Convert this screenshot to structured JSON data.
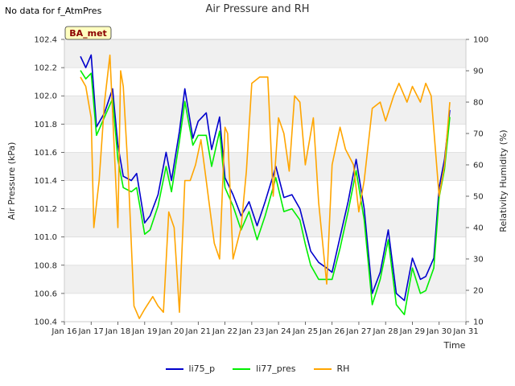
{
  "header": {
    "note": "No data for f_AtmPres",
    "title": "Air Pressure and RH"
  },
  "chart_data": {
    "type": "line",
    "title": "Air Pressure and RH",
    "xlabel": "Time",
    "ylabel_left": "Air Pressure (kPa)",
    "ylabel_right": "Relativity Humidity (%)",
    "badge": "BA_met",
    "x_ticks": [
      "Jan 16",
      "Jan 17",
      "Jan 18",
      "Jan 19",
      "Jan 20",
      "Jan 21",
      "Jan 22",
      "Jan 23",
      "Jan 24",
      "Jan 25",
      "Jan 26",
      "Jan 27",
      "Jan 28",
      "Jan 29",
      "Jan 30",
      "Jan 31"
    ],
    "xlim": [
      16,
      31
    ],
    "ylim_left": [
      100.4,
      102.4
    ],
    "ylim_right": [
      10,
      100
    ],
    "y_ticks_left": [
      "100.4",
      "100.6",
      "100.8",
      "101.0",
      "101.2",
      "101.4",
      "101.6",
      "101.8",
      "102.0",
      "102.2",
      "102.4"
    ],
    "y_ticks_right": [
      "10",
      "20",
      "30",
      "40",
      "50",
      "60",
      "70",
      "80",
      "90",
      "100"
    ],
    "legend_position": "bottom-center",
    "series": [
      {
        "name": "li75_p",
        "color": "#0000cc",
        "axis": "left",
        "x": [
          16.6,
          16.8,
          17.0,
          17.2,
          17.5,
          17.8,
          18.0,
          18.2,
          18.5,
          18.7,
          19.0,
          19.2,
          19.5,
          19.8,
          20.0,
          20.3,
          20.5,
          20.8,
          21.0,
          21.3,
          21.5,
          21.8,
          22.0,
          22.3,
          22.6,
          22.9,
          23.2,
          23.5,
          23.9,
          24.2,
          24.5,
          24.8,
          25.0,
          25.2,
          25.5,
          25.8,
          26.0,
          26.3,
          26.6,
          26.9,
          27.2,
          27.5,
          27.8,
          28.1,
          28.4,
          28.7,
          29.0,
          29.3,
          29.5,
          29.8,
          30.0,
          30.2,
          30.4
        ],
        "y": [
          102.28,
          102.2,
          102.29,
          101.78,
          101.88,
          102.05,
          101.65,
          101.43,
          101.4,
          101.45,
          101.1,
          101.15,
          101.3,
          101.6,
          101.4,
          101.75,
          102.05,
          101.7,
          101.82,
          101.88,
          101.62,
          101.85,
          101.42,
          101.3,
          101.15,
          101.25,
          101.08,
          101.25,
          101.5,
          101.28,
          101.3,
          101.2,
          101.05,
          100.9,
          100.82,
          100.78,
          100.75,
          101.0,
          101.25,
          101.55,
          101.2,
          100.6,
          100.75,
          101.05,
          100.6,
          100.55,
          100.85,
          100.7,
          100.72,
          100.85,
          101.35,
          101.55,
          101.9
        ]
      },
      {
        "name": "li77_pres",
        "color": "#00ee00",
        "axis": "left",
        "x": [
          16.6,
          16.8,
          17.0,
          17.2,
          17.5,
          17.8,
          18.0,
          18.2,
          18.5,
          18.7,
          19.0,
          19.2,
          19.5,
          19.8,
          20.0,
          20.3,
          20.5,
          20.8,
          21.0,
          21.3,
          21.5,
          21.8,
          22.0,
          22.3,
          22.6,
          22.9,
          23.2,
          23.5,
          23.9,
          24.2,
          24.5,
          24.8,
          25.0,
          25.2,
          25.5,
          25.8,
          26.0,
          26.3,
          26.6,
          26.9,
          27.2,
          27.5,
          27.8,
          28.1,
          28.4,
          28.7,
          29.0,
          29.3,
          29.5,
          29.8,
          30.0,
          30.2,
          30.4
        ],
        "y": [
          102.18,
          102.12,
          102.16,
          101.72,
          101.85,
          101.98,
          101.55,
          101.35,
          101.32,
          101.35,
          101.02,
          101.05,
          101.22,
          101.5,
          101.32,
          101.68,
          101.96,
          101.65,
          101.72,
          101.72,
          101.5,
          101.75,
          101.35,
          101.22,
          101.05,
          101.18,
          100.98,
          101.15,
          101.42,
          101.18,
          101.2,
          101.12,
          100.95,
          100.8,
          100.7,
          100.7,
          100.7,
          100.92,
          101.18,
          101.47,
          101.12,
          100.52,
          100.7,
          100.98,
          100.52,
          100.45,
          100.78,
          100.6,
          100.62,
          100.78,
          101.28,
          101.48,
          101.85
        ]
      },
      {
        "name": "RH",
        "color": "#ffa500",
        "axis": "right",
        "x": [
          16.6,
          16.8,
          17.0,
          17.1,
          17.3,
          17.5,
          17.7,
          18.0,
          18.1,
          18.2,
          18.4,
          18.6,
          18.8,
          19.0,
          19.3,
          19.5,
          19.7,
          19.9,
          20.1,
          20.3,
          20.5,
          20.7,
          20.9,
          21.1,
          21.3,
          21.6,
          21.8,
          22.0,
          22.1,
          22.3,
          22.6,
          22.8,
          23.0,
          23.3,
          23.6,
          23.8,
          24.0,
          24.2,
          24.4,
          24.6,
          24.8,
          25.0,
          25.3,
          25.5,
          25.8,
          26.0,
          26.3,
          26.5,
          26.8,
          27.0,
          27.2,
          27.5,
          27.8,
          28.0,
          28.3,
          28.5,
          28.8,
          29.0,
          29.3,
          29.5,
          29.7,
          30.0,
          30.2,
          30.4
        ],
        "y": [
          88,
          85,
          75,
          40,
          55,
          80,
          95,
          40,
          90,
          85,
          55,
          15,
          11,
          14,
          18,
          15,
          13,
          45,
          40,
          13,
          55,
          55,
          60,
          68,
          55,
          35,
          30,
          72,
          70,
          30,
          40,
          58,
          86,
          88,
          88,
          50,
          75,
          70,
          58,
          82,
          80,
          60,
          75,
          48,
          22,
          60,
          72,
          65,
          60,
          45,
          55,
          78,
          80,
          74,
          82,
          86,
          80,
          85,
          80,
          86,
          82,
          50,
          60,
          80
        ]
      }
    ]
  }
}
